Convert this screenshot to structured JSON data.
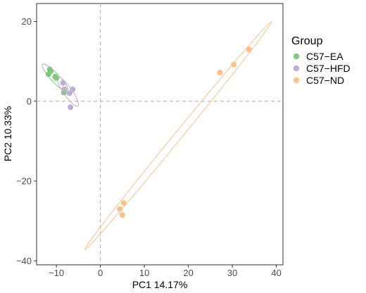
{
  "chart_data": {
    "type": "scatter",
    "xlabel": "PC1 14.17%",
    "ylabel": "PC2 10.33%",
    "xlim": [
      -14.5,
      41.5
    ],
    "ylim": [
      -41,
      24.5
    ],
    "xticks": [
      -10,
      0,
      10,
      20,
      30,
      40
    ],
    "yticks": [
      -40,
      -20,
      0,
      20
    ],
    "xtick_labels": [
      "−10",
      "0",
      "10",
      "20",
      "30",
      "40"
    ],
    "ytick_labels": [
      "−40",
      "−20",
      "0",
      "20"
    ],
    "reference_lines": {
      "x": 0,
      "y": 0,
      "style": "dashed",
      "color": "#b3b3b3"
    },
    "grid": false,
    "legend": {
      "title": "Group",
      "position": "right"
    },
    "series": [
      {
        "name": "C57−EA",
        "color": "#7fc97f",
        "points": [
          {
            "x": -11.5,
            "y": 8.0
          },
          {
            "x": -11.3,
            "y": 7.5
          },
          {
            "x": -11.8,
            "y": 6.8
          },
          {
            "x": -10.3,
            "y": 6.2
          },
          {
            "x": -10.0,
            "y": 5.8
          },
          {
            "x": -8.3,
            "y": 2.2
          }
        ],
        "ellipse": {
          "cx": -10.3,
          "cy": 5.9,
          "rx": 4.4,
          "ry": 1.0,
          "angle_deg": -50
        }
      },
      {
        "name": "C57−HFD",
        "color": "#beaed4",
        "points": [
          {
            "x": -8.5,
            "y": 4.6
          },
          {
            "x": -8.2,
            "y": 3.0
          },
          {
            "x": -6.3,
            "y": 3.0
          },
          {
            "x": -7.0,
            "y": 2.0
          },
          {
            "x": -6.8,
            "y": -1.5
          }
        ],
        "ellipse": {
          "cx": -7.4,
          "cy": 2.4,
          "rx": 4.3,
          "ry": 1.0,
          "angle_deg": -58
        }
      },
      {
        "name": "C57−ND",
        "color": "#fdc086",
        "points": [
          {
            "x": 33.8,
            "y": 13.0
          },
          {
            "x": 30.3,
            "y": 9.2
          },
          {
            "x": 27.2,
            "y": 7.2
          },
          {
            "x": 5.3,
            "y": -25.5
          },
          {
            "x": 4.4,
            "y": -27.0
          },
          {
            "x": 5.0,
            "y": -28.5
          }
        ],
        "ellipse": {
          "cx": 17.7,
          "cy": -8.6,
          "rx": 35.6,
          "ry": 0.9,
          "angle_deg": 53.4
        }
      }
    ]
  }
}
